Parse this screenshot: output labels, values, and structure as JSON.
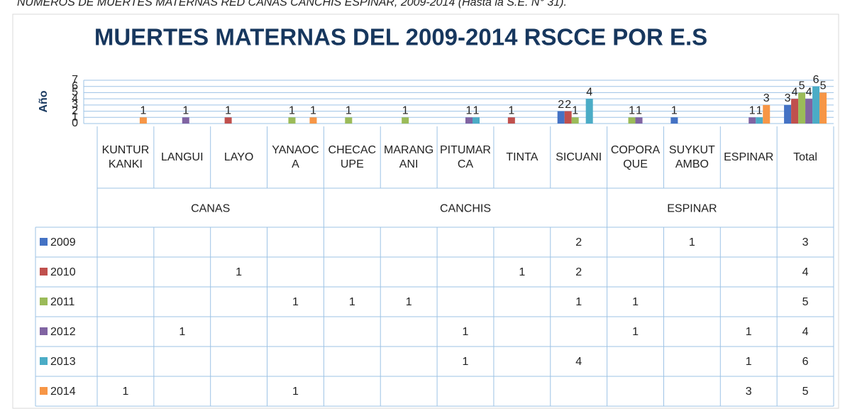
{
  "caption": "NÚMEROS DE MUERTES MATERNAS RED CANAS CANCHIS ESPINAR, 2009-2014 (Hasta la S.E. N° 31).",
  "chart_data": {
    "type": "bar",
    "title": "MUERTES MATERNAS DEL 2009-2014 RSCCE POR E.S",
    "y_label": "Año",
    "categories": [
      "KUNTURKANKI",
      "LANGUI",
      "LAYO",
      "YANAOCA",
      "CHECACUPE",
      "MARANGANI",
      "PITUMARCA",
      "TINTA",
      "SICUANI",
      "COPORAQUE",
      "SUYKUTAMBO",
      "ESPINAR",
      "Total"
    ],
    "category_groups": [
      {
        "name": "CANAS",
        "count": 4
      },
      {
        "name": "CANCHIS",
        "count": 5
      },
      {
        "name": "ESPINAR",
        "count": 3
      }
    ],
    "series": [
      {
        "name": "2009",
        "color": "#4472c4",
        "values": [
          null,
          null,
          null,
          null,
          null,
          null,
          null,
          null,
          2,
          null,
          1,
          null,
          3
        ]
      },
      {
        "name": "2010",
        "color": "#c0504d",
        "values": [
          null,
          null,
          1,
          null,
          null,
          null,
          null,
          1,
          2,
          null,
          null,
          null,
          4
        ]
      },
      {
        "name": "2011",
        "color": "#9bbb59",
        "values": [
          null,
          null,
          null,
          1,
          1,
          1,
          null,
          null,
          1,
          1,
          null,
          null,
          5
        ]
      },
      {
        "name": "2012",
        "color": "#8064a2",
        "values": [
          null,
          1,
          null,
          null,
          null,
          null,
          1,
          null,
          null,
          1,
          null,
          1,
          4
        ]
      },
      {
        "name": "2013",
        "color": "#4bacc6",
        "values": [
          null,
          null,
          null,
          null,
          null,
          null,
          1,
          null,
          4,
          null,
          null,
          1,
          6
        ]
      },
      {
        "name": "2014",
        "color": "#f79646",
        "values": [
          1,
          null,
          null,
          1,
          null,
          null,
          null,
          null,
          null,
          null,
          null,
          3,
          5
        ]
      }
    ],
    "ylim": [
      0,
      7
    ],
    "yticks": [
      0,
      1,
      2,
      3,
      4,
      5,
      6,
      7
    ],
    "grid": true,
    "data_table": true
  }
}
